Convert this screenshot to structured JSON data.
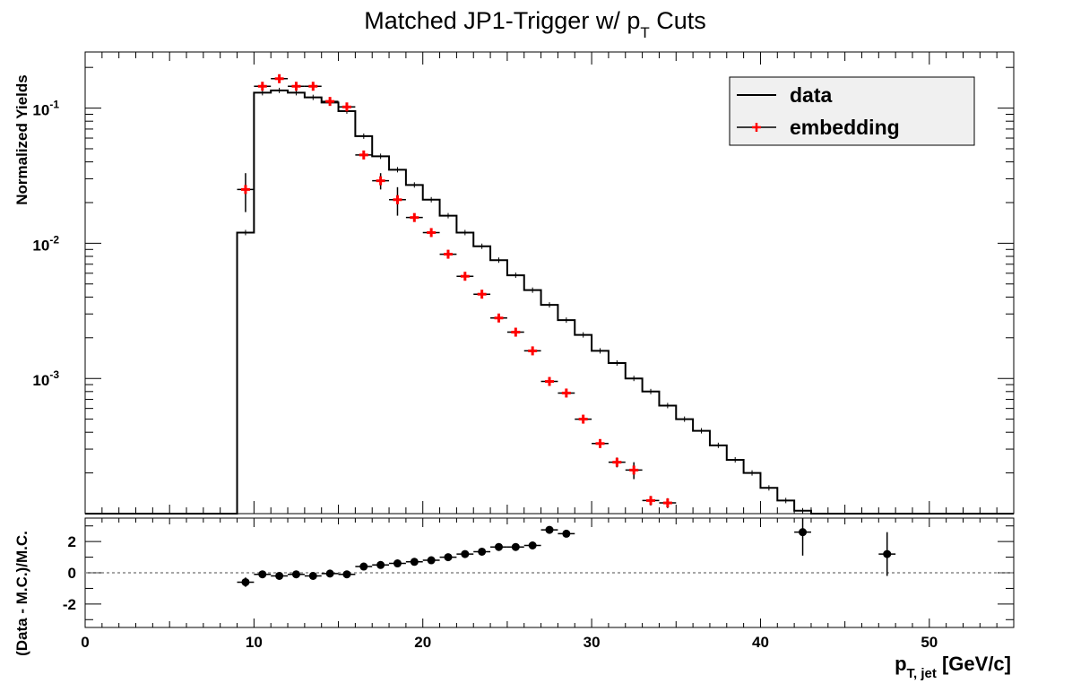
{
  "chart_data": [
    {
      "panel": "main",
      "type": "line",
      "title": "Matched JP1-Trigger w/ p_T Cuts",
      "title_main": "Matched JP1-Trigger w/ p",
      "title_sub": "T",
      "title_tail": " Cuts",
      "ylabel": "Normalized Yields",
      "yscale": "log",
      "xlim": [
        0,
        55
      ],
      "ylim": [
        0.0001,
        0.26
      ],
      "ytick_labels": [
        {
          "value": 0.1,
          "base": "10",
          "exp": "-1"
        },
        {
          "value": 0.01,
          "base": "10",
          "exp": "-2"
        },
        {
          "value": 0.001,
          "base": "10",
          "exp": "-3"
        }
      ],
      "legend_position": "top-right",
      "series": [
        {
          "name": "data",
          "style": "histogram",
          "color": "#000000",
          "bin_edges": [
            9,
            10,
            11,
            12,
            13,
            14,
            15,
            16,
            17,
            18,
            19,
            20,
            21,
            22,
            23,
            24,
            25,
            26,
            27,
            28,
            29,
            30,
            31,
            32,
            33,
            34,
            35,
            36,
            37,
            38,
            39,
            40,
            41,
            42,
            43
          ],
          "values": [
            0.012,
            0.13,
            0.135,
            0.13,
            0.12,
            0.11,
            0.095,
            0.062,
            0.044,
            0.035,
            0.027,
            0.021,
            0.016,
            0.012,
            0.0095,
            0.0075,
            0.0058,
            0.0045,
            0.0035,
            0.0027,
            0.0021,
            0.0016,
            0.0013,
            0.001,
            0.0008,
            0.00063,
            0.0005,
            0.00041,
            0.00032,
            0.00025,
            0.0002,
            0.000155,
            0.000125,
            0.000105
          ]
        },
        {
          "name": "embedding",
          "style": "points",
          "color": "#ff0000",
          "x": [
            9.5,
            10.5,
            11.5,
            12.5,
            13.5,
            14.5,
            15.5,
            16.5,
            17.5,
            18.5,
            19.5,
            20.5,
            21.5,
            22.5,
            23.5,
            24.5,
            25.5,
            26.5,
            27.5,
            28.5,
            29.5,
            30.5,
            31.5,
            32.5,
            33.5,
            34.5
          ],
          "y": [
            0.025,
            0.145,
            0.165,
            0.145,
            0.145,
            0.112,
            0.102,
            0.045,
            0.029,
            0.021,
            0.0155,
            0.012,
            0.0083,
            0.0057,
            0.0042,
            0.0028,
            0.0022,
            0.0016,
            0.00095,
            0.00078,
            0.0005,
            0.00033,
            0.00024,
            0.00021,
            0.000125,
            0.00012
          ],
          "yerr": [
            0.008,
            0.006,
            0.006,
            0.005,
            0.005,
            0.004,
            0.004,
            0.002,
            0.004,
            0.005,
            0.001,
            0.0008,
            0.0004,
            0.0003,
            0.0002,
            0.00015,
            0.00012,
            0.0001,
            5e-05,
            5e-05,
            3e-05,
            2e-05,
            2e-05,
            3e-05,
            1e-05,
            1e-05
          ]
        }
      ]
    },
    {
      "panel": "ratio",
      "type": "scatter",
      "ylabel": "(Data - M.C.)/M.C.",
      "xlabel_main": "p",
      "xlabel_sub": "T, jet",
      "xlabel_tail": " [GeV/c]",
      "xlim": [
        0,
        55
      ],
      "ylim": [
        -3.5,
        3.5
      ],
      "xtick_labels": [
        "0",
        "10",
        "20",
        "30",
        "40",
        "50"
      ],
      "ytick_labels": [
        "2",
        "0",
        "-2"
      ],
      "reference_line": 0,
      "series": [
        {
          "name": "",
          "color": "#000000",
          "x": [
            9.5,
            10.5,
            11.5,
            12.5,
            13.5,
            14.5,
            15.5,
            16.5,
            17.5,
            18.5,
            19.5,
            20.5,
            21.5,
            22.5,
            23.5,
            24.5,
            25.5,
            26.5,
            27.5,
            28.5,
            42.5,
            47.5
          ],
          "y": [
            -0.6,
            -0.1,
            -0.2,
            -0.1,
            -0.2,
            -0.05,
            -0.1,
            0.4,
            0.5,
            0.6,
            0.7,
            0.8,
            1.0,
            1.2,
            1.35,
            1.65,
            1.65,
            1.75,
            2.75,
            2.5,
            2.6,
            1.2
          ],
          "yerr": [
            0.3,
            0.1,
            0.1,
            0.1,
            0.1,
            0.1,
            0.1,
            0.1,
            0.1,
            0.1,
            0.1,
            0.1,
            0.1,
            0.1,
            0.1,
            0.1,
            0.1,
            0.1,
            0.15,
            0.15,
            1.5,
            1.4
          ]
        }
      ]
    }
  ],
  "legend": {
    "entries": [
      "data",
      "embedding"
    ]
  }
}
